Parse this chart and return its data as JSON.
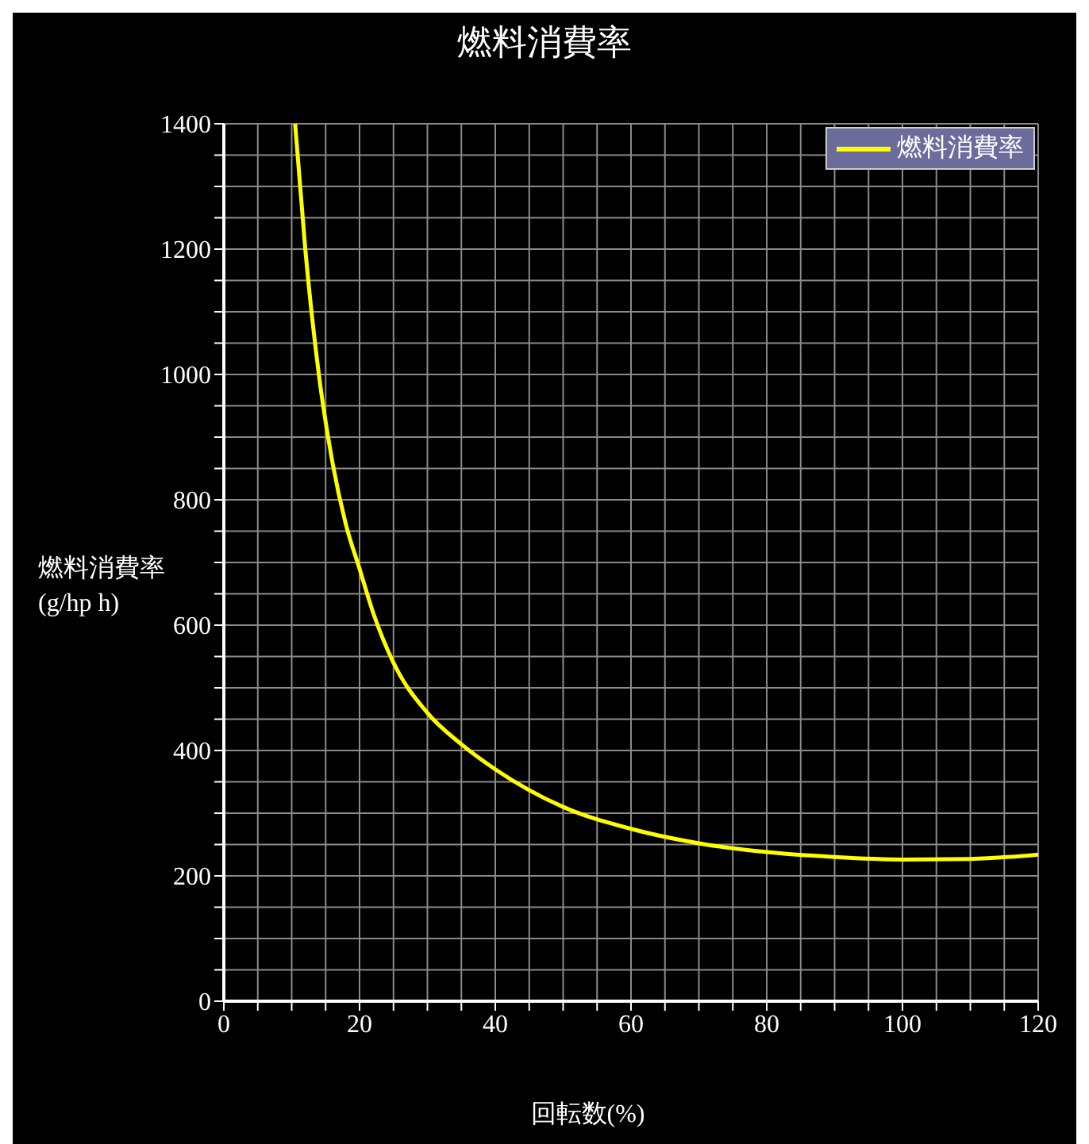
{
  "chart_data": {
    "type": "line",
    "title": "燃料消費率",
    "xlabel": "回転数(%)",
    "ylabel": "燃料消費率\n(g/hp h)",
    "x": [
      10.5,
      12,
      14,
      16,
      18,
      20,
      22,
      25,
      30,
      35,
      40,
      50,
      60,
      70,
      80,
      90,
      100,
      110,
      120
    ],
    "series": [
      {
        "name": "燃料消費率",
        "color": "#ffff00",
        "values": [
          1400,
          1200,
          1000,
          860,
          760,
          690,
          620,
          540,
          460,
          410,
          370,
          310,
          275,
          252,
          238,
          230,
          226,
          227,
          234
        ]
      }
    ],
    "xlim": [
      0,
      120
    ],
    "xticks": [
      0,
      {
        "value": 5,
        "label": null
      },
      {
        "value": 10,
        "label": null
      },
      {
        "value": 15,
        "label": null
      },
      20,
      {
        "value": 25,
        "label": null
      },
      {
        "value": 30,
        "label": null
      },
      {
        "value": 35,
        "label": null
      },
      40,
      {
        "value": 45,
        "label": null
      },
      {
        "value": 50,
        "label": null
      },
      {
        "value": 55,
        "label": null
      },
      60,
      {
        "value": 65,
        "label": null
      },
      {
        "value": 70,
        "label": null
      },
      {
        "value": 75,
        "label": null
      },
      80,
      {
        "value": 85,
        "label": null
      },
      {
        "value": 90,
        "label": null
      },
      {
        "value": 95,
        "label": null
      },
      100,
      {
        "value": 105,
        "label": null
      },
      {
        "value": 110,
        "label": null
      },
      {
        "value": 115,
        "label": null
      },
      120
    ],
    "ylim": [
      0,
      1400
    ],
    "yticks": [
      0,
      {
        "value": 50,
        "label": null
      },
      {
        "value": 100,
        "label": null
      },
      {
        "value": 150,
        "label": null
      },
      200,
      {
        "value": 250,
        "label": null
      },
      {
        "value": 300,
        "label": null
      },
      {
        "value": 350,
        "label": null
      },
      400,
      {
        "value": 450,
        "label": null
      },
      {
        "value": 500,
        "label": null
      },
      {
        "value": 550,
        "label": null
      },
      600,
      {
        "value": 650,
        "label": null
      },
      {
        "value": 700,
        "label": null
      },
      {
        "value": 750,
        "label": null
      },
      800,
      {
        "value": 850,
        "label": null
      },
      {
        "value": 900,
        "label": null
      },
      {
        "value": 950,
        "label": null
      },
      1000,
      {
        "value": 1050,
        "label": null
      },
      {
        "value": 1100,
        "label": null
      },
      {
        "value": 1150,
        "label": null
      },
      1200,
      {
        "value": 1250,
        "label": null
      },
      {
        "value": 1300,
        "label": null
      },
      {
        "value": 1350,
        "label": null
      },
      1400
    ],
    "grid": true,
    "legend": "top right",
    "marker": "none",
    "line_style": "solid"
  }
}
